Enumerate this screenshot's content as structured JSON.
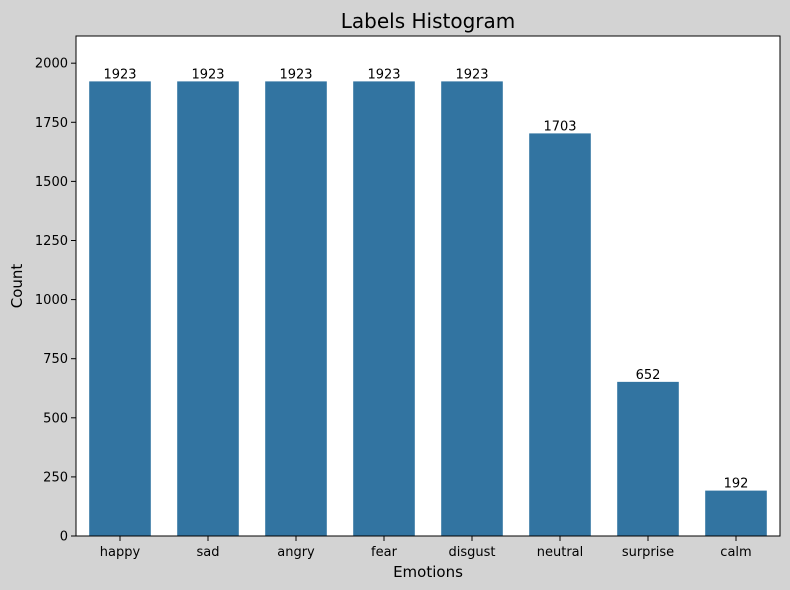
{
  "figure": {
    "background": "#d3d3d3",
    "plot_background": "#ffffff"
  },
  "chart_data": {
    "type": "bar",
    "title": "Labels Histogram",
    "xlabel": "Emotions",
    "ylabel": "Count",
    "categories": [
      "happy",
      "sad",
      "angry",
      "fear",
      "disgust",
      "neutral",
      "surprise",
      "calm"
    ],
    "values": [
      1923,
      1923,
      1923,
      1923,
      1923,
      1703,
      652,
      192
    ],
    "data_labels": [
      "1923",
      "1923",
      "1923",
      "1923",
      "1923",
      "1703",
      "652",
      "192"
    ],
    "ylim": [
      0,
      2115
    ],
    "yticks": [
      0,
      250,
      500,
      750,
      1000,
      1250,
      1500,
      1750,
      2000
    ],
    "grid": false,
    "bar_color": "#3274a1"
  }
}
